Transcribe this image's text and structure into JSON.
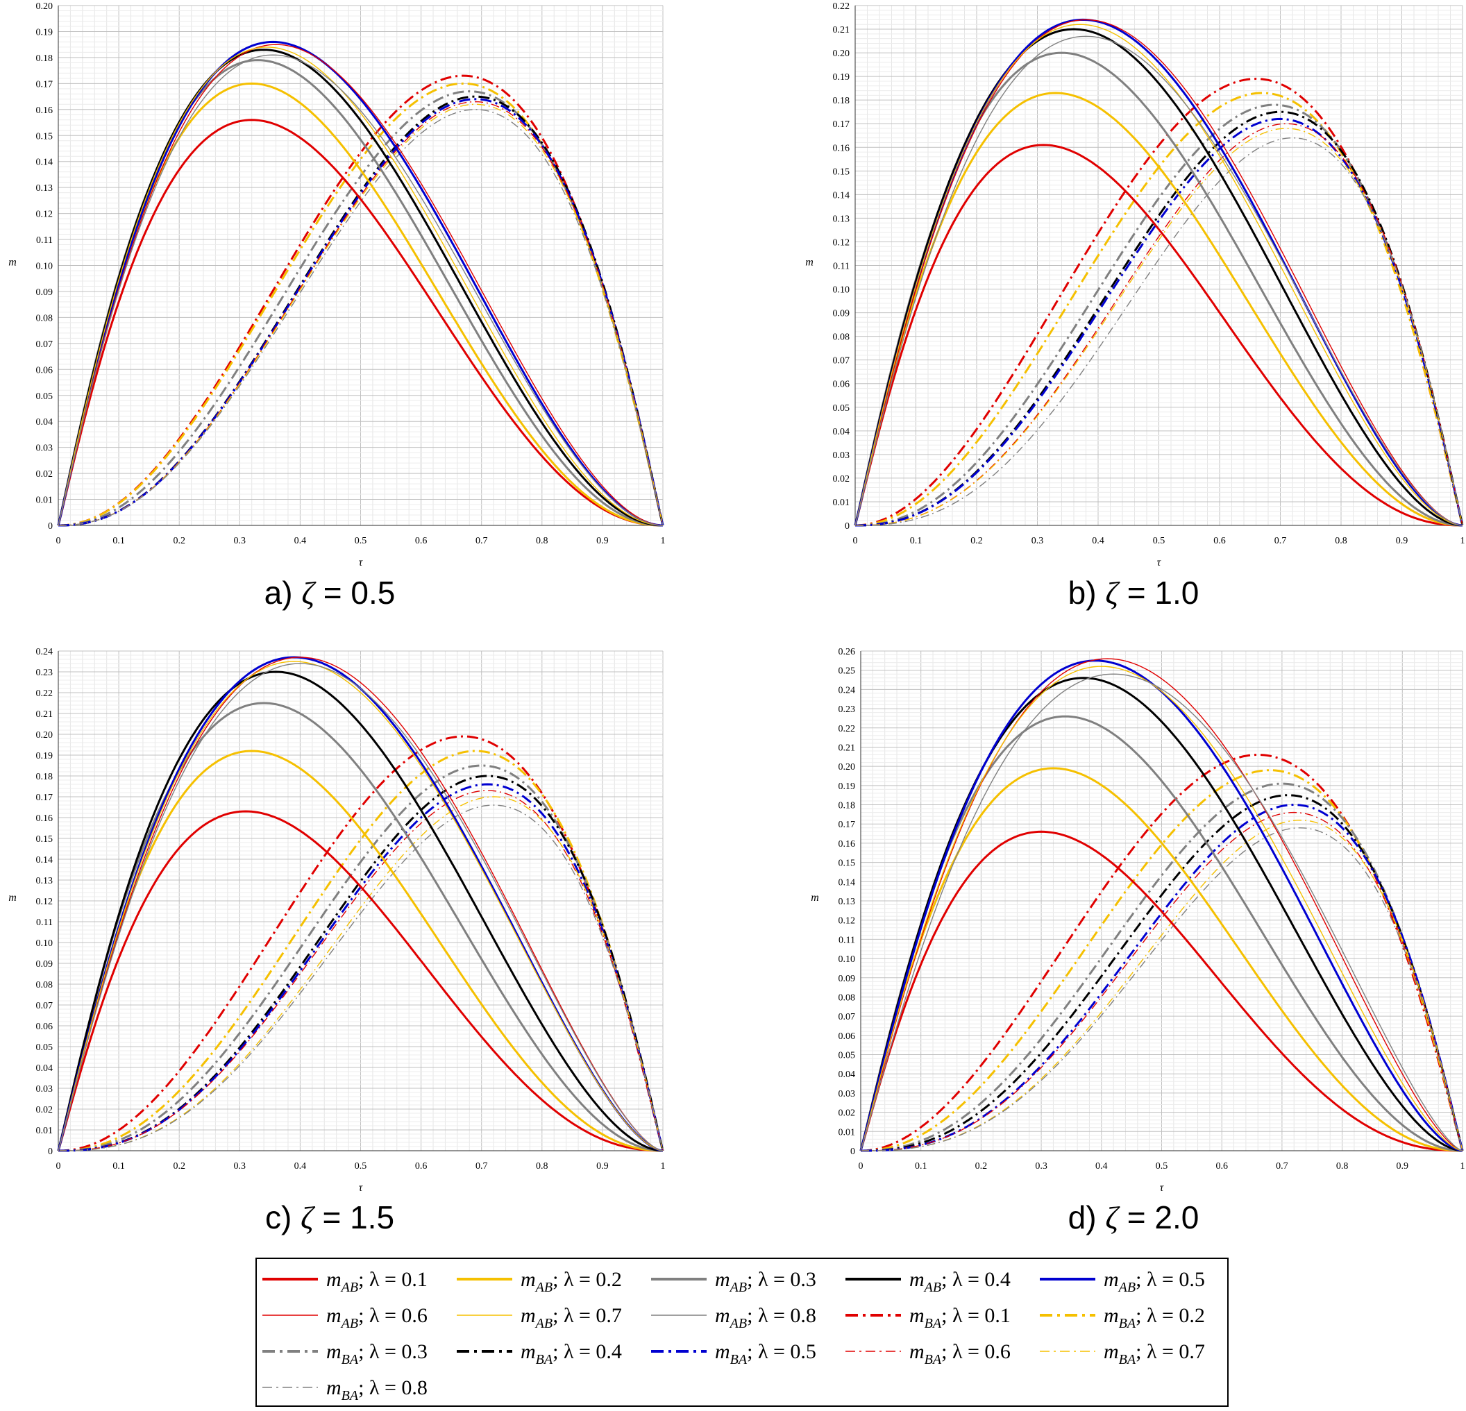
{
  "figure": {
    "legend": {
      "items": [
        {
          "label_m": "m",
          "sub": "AB",
          "lambda_text": "; λ = 0.1",
          "color": "#e00000",
          "dash": "solid",
          "weight": "thick"
        },
        {
          "label_m": "m",
          "sub": "AB",
          "lambda_text": "; λ = 0.2",
          "color": "#f5c000",
          "dash": "solid",
          "weight": "thick"
        },
        {
          "label_m": "m",
          "sub": "AB",
          "lambda_text": "; λ = 0.3",
          "color": "#808080",
          "dash": "solid",
          "weight": "thick"
        },
        {
          "label_m": "m",
          "sub": "AB",
          "lambda_text": "; λ = 0.4",
          "color": "#000000",
          "dash": "solid",
          "weight": "thick"
        },
        {
          "label_m": "m",
          "sub": "AB",
          "lambda_text": "; λ = 0.5",
          "color": "#0000d0",
          "dash": "solid",
          "weight": "thick"
        },
        {
          "label_m": "m",
          "sub": "AB",
          "lambda_text": "; λ = 0.6",
          "color": "#e00000",
          "dash": "solid",
          "weight": "thin"
        },
        {
          "label_m": "m",
          "sub": "AB",
          "lambda_text": "; λ = 0.7",
          "color": "#f5c000",
          "dash": "solid",
          "weight": "thin"
        },
        {
          "label_m": "m",
          "sub": "AB",
          "lambda_text": "; λ = 0.8",
          "color": "#808080",
          "dash": "solid",
          "weight": "thin"
        },
        {
          "label_m": "m",
          "sub": "BA",
          "lambda_text": "; λ = 0.1",
          "color": "#e00000",
          "dash": "dashdot",
          "weight": "thick"
        },
        {
          "label_m": "m",
          "sub": "BA",
          "lambda_text": "; λ = 0.2",
          "color": "#f5c000",
          "dash": "dashdot",
          "weight": "thick"
        },
        {
          "label_m": "m",
          "sub": "BA",
          "lambda_text": "; λ = 0.3",
          "color": "#808080",
          "dash": "dashdot",
          "weight": "thick"
        },
        {
          "label_m": "m",
          "sub": "BA",
          "lambda_text": "; λ = 0.4",
          "color": "#000000",
          "dash": "dashdot",
          "weight": "thick"
        },
        {
          "label_m": "m",
          "sub": "BA",
          "lambda_text": "; λ = 0.5",
          "color": "#0000d0",
          "dash": "dashdot",
          "weight": "thick"
        },
        {
          "label_m": "m",
          "sub": "BA",
          "lambda_text": "; λ = 0.6",
          "color": "#e00000",
          "dash": "dashdot",
          "weight": "thin"
        },
        {
          "label_m": "m",
          "sub": "BA",
          "lambda_text": "; λ = 0.7",
          "color": "#f5c000",
          "dash": "dashdot",
          "weight": "thin"
        },
        {
          "label_m": "m",
          "sub": "BA",
          "lambda_text": "; λ = 0.8",
          "color": "#808080",
          "dash": "dashdot",
          "weight": "thin"
        }
      ]
    }
  },
  "chart_data": [
    {
      "type": "line",
      "caption_prefix": "a) ",
      "caption_symbol": "ζ",
      "caption_value": " = 0.5",
      "xlabel": "τ",
      "ylabel": "m",
      "xlim": [
        0,
        1
      ],
      "ylim": [
        0,
        0.2
      ],
      "ytick_step": 0.01,
      "xticks": [
        "0",
        "0.1",
        "0.2",
        "0.3",
        "0.4",
        "0.5",
        "0.6",
        "0.7",
        "0.8",
        "0.9",
        "1"
      ],
      "yticks": [
        "0",
        "0.01",
        "0.02",
        "0.03",
        "0.04",
        "0.05",
        "0.06",
        "0.07",
        "0.08",
        "0.09",
        "0.10",
        "0.11",
        "0.12",
        "0.13",
        "0.14",
        "0.15",
        "0.16",
        "0.17",
        "0.18",
        "0.19",
        "0.20"
      ],
      "grid": true,
      "series_peaks": {
        "m_AB": [
          {
            "lambda": 0.1,
            "x_peak": 0.32,
            "y_peak": 0.156
          },
          {
            "lambda": 0.2,
            "x_peak": 0.32,
            "y_peak": 0.17
          },
          {
            "lambda": 0.3,
            "x_peak": 0.33,
            "y_peak": 0.179
          },
          {
            "lambda": 0.4,
            "x_peak": 0.34,
            "y_peak": 0.183
          },
          {
            "lambda": 0.5,
            "x_peak": 0.355,
            "y_peak": 0.186
          },
          {
            "lambda": 0.6,
            "x_peak": 0.36,
            "y_peak": 0.185
          },
          {
            "lambda": 0.7,
            "x_peak": 0.345,
            "y_peak": 0.184
          },
          {
            "lambda": 0.8,
            "x_peak": 0.355,
            "y_peak": 0.181
          }
        ],
        "m_BA": [
          {
            "lambda": 0.1,
            "x_peak": 0.67,
            "y_peak": 0.173
          },
          {
            "lambda": 0.2,
            "x_peak": 0.67,
            "y_peak": 0.17
          },
          {
            "lambda": 0.3,
            "x_peak": 0.68,
            "y_peak": 0.167
          },
          {
            "lambda": 0.4,
            "x_peak": 0.69,
            "y_peak": 0.165
          },
          {
            "lambda": 0.5,
            "x_peak": 0.69,
            "y_peak": 0.164
          },
          {
            "lambda": 0.6,
            "x_peak": 0.69,
            "y_peak": 0.163
          },
          {
            "lambda": 0.7,
            "x_peak": 0.69,
            "y_peak": 0.162
          },
          {
            "lambda": 0.8,
            "x_peak": 0.69,
            "y_peak": 0.16
          }
        ]
      }
    },
    {
      "type": "line",
      "caption_prefix": "b) ",
      "caption_symbol": "ζ",
      "caption_value": " = 1.0",
      "xlabel": "τ",
      "ylabel": "m",
      "xlim": [
        0,
        1
      ],
      "ylim": [
        0,
        0.22
      ],
      "ytick_step": 0.01,
      "xticks": [
        "0",
        "0.1",
        "0.2",
        "0.3",
        "0.4",
        "0.5",
        "0.6",
        "0.7",
        "0.8",
        "0.9",
        "1"
      ],
      "yticks": [
        "0",
        "0.01",
        "0.02",
        "0.03",
        "0.04",
        "0.05",
        "0.06",
        "0.07",
        "0.08",
        "0.09",
        "0.10",
        "0.11",
        "0.12",
        "0.13",
        "0.14",
        "0.15",
        "0.16",
        "0.17",
        "0.18",
        "0.19",
        "0.20",
        "0.21",
        "0.22"
      ],
      "grid": true,
      "series_peaks": {
        "m_AB": [
          {
            "lambda": 0.1,
            "x_peak": 0.31,
            "y_peak": 0.161
          },
          {
            "lambda": 0.2,
            "x_peak": 0.33,
            "y_peak": 0.183
          },
          {
            "lambda": 0.3,
            "x_peak": 0.34,
            "y_peak": 0.2
          },
          {
            "lambda": 0.4,
            "x_peak": 0.36,
            "y_peak": 0.21
          },
          {
            "lambda": 0.5,
            "x_peak": 0.375,
            "y_peak": 0.214
          },
          {
            "lambda": 0.6,
            "x_peak": 0.38,
            "y_peak": 0.214
          },
          {
            "lambda": 0.7,
            "x_peak": 0.37,
            "y_peak": 0.212
          },
          {
            "lambda": 0.8,
            "x_peak": 0.38,
            "y_peak": 0.207
          }
        ],
        "m_BA": [
          {
            "lambda": 0.1,
            "x_peak": 0.66,
            "y_peak": 0.189
          },
          {
            "lambda": 0.2,
            "x_peak": 0.67,
            "y_peak": 0.183
          },
          {
            "lambda": 0.3,
            "x_peak": 0.69,
            "y_peak": 0.178
          },
          {
            "lambda": 0.4,
            "x_peak": 0.7,
            "y_peak": 0.175
          },
          {
            "lambda": 0.5,
            "x_peak": 0.7,
            "y_peak": 0.172
          },
          {
            "lambda": 0.6,
            "x_peak": 0.71,
            "y_peak": 0.17
          },
          {
            "lambda": 0.7,
            "x_peak": 0.71,
            "y_peak": 0.168
          },
          {
            "lambda": 0.8,
            "x_peak": 0.72,
            "y_peak": 0.164
          }
        ]
      }
    },
    {
      "type": "line",
      "caption_prefix": "c) ",
      "caption_symbol": "ζ",
      "caption_value": " = 1.5",
      "xlabel": "τ",
      "ylabel": "m",
      "xlim": [
        0,
        1
      ],
      "ylim": [
        0,
        0.24
      ],
      "ytick_step": 0.01,
      "xticks": [
        "0",
        "0.1",
        "0.2",
        "0.3",
        "0.4",
        "0.5",
        "0.6",
        "0.7",
        "0.8",
        "0.9",
        "1"
      ],
      "yticks": [
        "0",
        "0.01",
        "0.02",
        "0.03",
        "0.04",
        "0.05",
        "0.06",
        "0.07",
        "0.08",
        "0.09",
        "0.10",
        "0.11",
        "0.12",
        "0.13",
        "0.14",
        "0.15",
        "0.16",
        "0.17",
        "0.18",
        "0.19",
        "0.20",
        "0.21",
        "0.22",
        "0.23",
        "0.24"
      ],
      "grid": true,
      "series_peaks": {
        "m_AB": [
          {
            "lambda": 0.1,
            "x_peak": 0.31,
            "y_peak": 0.163
          },
          {
            "lambda": 0.2,
            "x_peak": 0.32,
            "y_peak": 0.192
          },
          {
            "lambda": 0.3,
            "x_peak": 0.34,
            "y_peak": 0.215
          },
          {
            "lambda": 0.4,
            "x_peak": 0.36,
            "y_peak": 0.23
          },
          {
            "lambda": 0.5,
            "x_peak": 0.39,
            "y_peak": 0.237
          },
          {
            "lambda": 0.6,
            "x_peak": 0.4,
            "y_peak": 0.237
          },
          {
            "lambda": 0.7,
            "x_peak": 0.39,
            "y_peak": 0.235
          },
          {
            "lambda": 0.8,
            "x_peak": 0.4,
            "y_peak": 0.234
          }
        ],
        "m_BA": [
          {
            "lambda": 0.1,
            "x_peak": 0.67,
            "y_peak": 0.199
          },
          {
            "lambda": 0.2,
            "x_peak": 0.69,
            "y_peak": 0.192
          },
          {
            "lambda": 0.3,
            "x_peak": 0.7,
            "y_peak": 0.185
          },
          {
            "lambda": 0.4,
            "x_peak": 0.71,
            "y_peak": 0.18
          },
          {
            "lambda": 0.5,
            "x_peak": 0.71,
            "y_peak": 0.176
          },
          {
            "lambda": 0.6,
            "x_peak": 0.71,
            "y_peak": 0.173
          },
          {
            "lambda": 0.7,
            "x_peak": 0.72,
            "y_peak": 0.17
          },
          {
            "lambda": 0.8,
            "x_peak": 0.72,
            "y_peak": 0.166
          }
        ]
      }
    },
    {
      "type": "line",
      "caption_prefix": "d) ",
      "caption_symbol": "ζ",
      "caption_value": " = 2.0",
      "xlabel": "τ",
      "ylabel": "m",
      "xlim": [
        0,
        1
      ],
      "ylim": [
        0,
        0.26
      ],
      "ytick_step": 0.01,
      "xticks": [
        "0",
        "0.1",
        "0.2",
        "0.3",
        "0.4",
        "0.5",
        "0.6",
        "0.7",
        "0.8",
        "0.9",
        "1"
      ],
      "yticks": [
        "0",
        "0.01",
        "0.02",
        "0.03",
        "0.04",
        "0.05",
        "0.06",
        "0.07",
        "0.08",
        "0.09",
        "0.10",
        "0.11",
        "0.12",
        "0.13",
        "0.14",
        "0.15",
        "0.16",
        "0.17",
        "0.18",
        "0.19",
        "0.20",
        "0.21",
        "0.22",
        "0.23",
        "0.24",
        "0.25",
        "0.26"
      ],
      "grid": true,
      "series_peaks": {
        "m_AB": [
          {
            "lambda": 0.1,
            "x_peak": 0.3,
            "y_peak": 0.166
          },
          {
            "lambda": 0.2,
            "x_peak": 0.32,
            "y_peak": 0.199
          },
          {
            "lambda": 0.3,
            "x_peak": 0.34,
            "y_peak": 0.226
          },
          {
            "lambda": 0.4,
            "x_peak": 0.37,
            "y_peak": 0.246
          },
          {
            "lambda": 0.5,
            "x_peak": 0.39,
            "y_peak": 0.255
          },
          {
            "lambda": 0.6,
            "x_peak": 0.41,
            "y_peak": 0.256
          },
          {
            "lambda": 0.7,
            "x_peak": 0.4,
            "y_peak": 0.252
          },
          {
            "lambda": 0.8,
            "x_peak": 0.42,
            "y_peak": 0.248
          }
        ],
        "m_BA": [
          {
            "lambda": 0.1,
            "x_peak": 0.66,
            "y_peak": 0.206
          },
          {
            "lambda": 0.2,
            "x_peak": 0.68,
            "y_peak": 0.198
          },
          {
            "lambda": 0.3,
            "x_peak": 0.7,
            "y_peak": 0.191
          },
          {
            "lambda": 0.4,
            "x_peak": 0.71,
            "y_peak": 0.185
          },
          {
            "lambda": 0.5,
            "x_peak": 0.72,
            "y_peak": 0.18
          },
          {
            "lambda": 0.6,
            "x_peak": 0.72,
            "y_peak": 0.176
          },
          {
            "lambda": 0.7,
            "x_peak": 0.73,
            "y_peak": 0.172
          },
          {
            "lambda": 0.8,
            "x_peak": 0.73,
            "y_peak": 0.168
          }
        ]
      }
    }
  ]
}
